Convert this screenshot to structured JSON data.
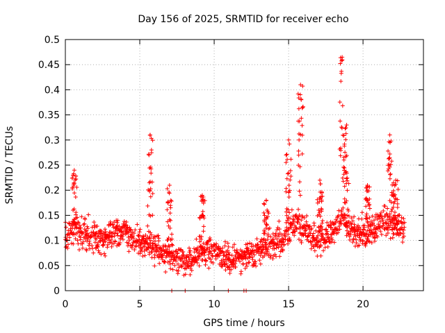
{
  "chart_data": {
    "type": "scatter",
    "title": "Day 156 of 2025, SRMTID for receiver echo",
    "xlabel": "GPS time / hours",
    "ylabel": "SRMTID / TECUs",
    "xlim": [
      0,
      24.06
    ],
    "ylim": [
      0,
      0.5
    ],
    "x_ticks": [
      0,
      5,
      10,
      15,
      20
    ],
    "x_tick_labels": [
      "0",
      "5",
      "10",
      "15",
      "20"
    ],
    "y_ticks": [
      0,
      0.05,
      0.1,
      0.15,
      0.2,
      0.25,
      0.3,
      0.35,
      0.4,
      0.45,
      0.5
    ],
    "y_tick_labels": [
      "0",
      "0.05",
      "0.1",
      "0.15",
      "0.2",
      "0.25",
      "0.3",
      "0.35",
      "0.4",
      "0.45",
      "0.5"
    ],
    "grid": true,
    "marker": "+",
    "series": [
      {
        "name": "SRMTID",
        "color": "#ff0000",
        "trend": {
          "x": [
            0,
            0.5,
            1,
            1.5,
            2,
            2.5,
            3,
            3.5,
            4,
            4.5,
            5,
            5.5,
            6,
            6.5,
            7,
            7.5,
            8,
            8.5,
            9,
            9.5,
            10,
            10.5,
            11,
            11.5,
            12,
            12.5,
            13,
            13.5,
            14,
            14.5,
            15,
            15.5,
            16,
            16.5,
            17,
            17.5,
            18,
            18.5,
            19,
            19.5,
            20,
            20.5,
            21,
            21.5,
            22,
            22.5,
            22.8
          ],
          "y": [
            0.11,
            0.12,
            0.115,
            0.11,
            0.105,
            0.1,
            0.11,
            0.12,
            0.115,
            0.105,
            0.095,
            0.09,
            0.085,
            0.075,
            0.07,
            0.065,
            0.06,
            0.065,
            0.075,
            0.08,
            0.075,
            0.07,
            0.065,
            0.065,
            0.07,
            0.075,
            0.08,
            0.085,
            0.09,
            0.1,
            0.12,
            0.13,
            0.12,
            0.11,
            0.105,
            0.11,
            0.12,
            0.15,
            0.13,
            0.115,
            0.11,
            0.12,
            0.13,
            0.14,
            0.13,
            0.12,
            0.12
          ]
        },
        "spread": 0.028,
        "bursts": [
          {
            "x": 0.6,
            "y": 0.24
          },
          {
            "x": 5.7,
            "y": 0.31
          },
          {
            "x": 7.0,
            "y": 0.21
          },
          {
            "x": 9.2,
            "y": 0.19
          },
          {
            "x": 13.5,
            "y": 0.18
          },
          {
            "x": 15.0,
            "y": 0.3
          },
          {
            "x": 15.8,
            "y": 0.41
          },
          {
            "x": 17.1,
            "y": 0.22
          },
          {
            "x": 18.6,
            "y": 0.465
          },
          {
            "x": 18.9,
            "y": 0.33
          },
          {
            "x": 20.3,
            "y": 0.21
          },
          {
            "x": 21.8,
            "y": 0.31
          },
          {
            "x": 22.2,
            "y": 0.22
          }
        ],
        "zero_markers_x": [
          7.15,
          8.05,
          10.95,
          12.0,
          12.15
        ]
      }
    ]
  }
}
